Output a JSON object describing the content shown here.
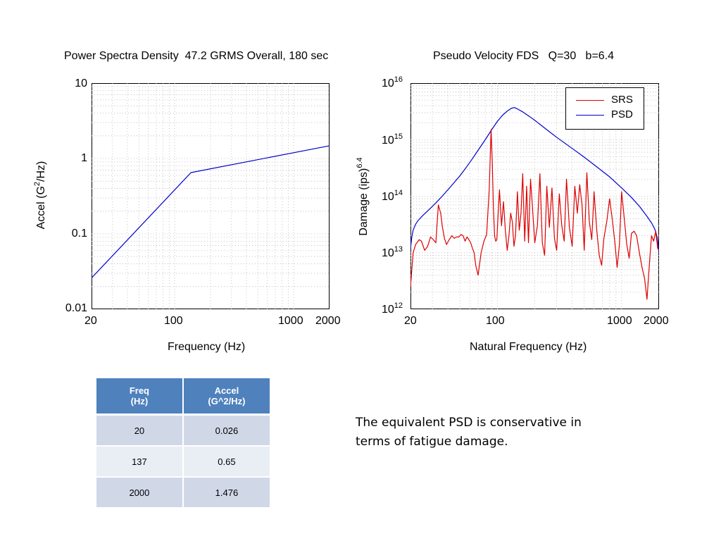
{
  "chart_data": [
    {
      "type": "line",
      "title": "Power Spectra Density  47.2 GRMS Overall, 180 sec",
      "xlabel": "Frequency (Hz)",
      "ylabel": "Accel (G2/Hz)",
      "x_scale": "log",
      "y_scale": "log",
      "xlim": [
        20,
        2000
      ],
      "ylim": [
        0.01,
        10
      ],
      "x_ticks": [
        "20",
        "100",
        "1000",
        "2000"
      ],
      "y_ticks": [
        "10",
        "1",
        "0.1",
        "0.01"
      ],
      "grid": true,
      "series": [
        {
          "color": "#0000cc",
          "x": [
            20,
            137,
            2000
          ],
          "y": [
            0.026,
            0.65,
            1.476
          ]
        }
      ]
    },
    {
      "type": "line",
      "title": "Pseudo Velocity FDS   Q=30   b=6.4",
      "xlabel": "Natural Frequency (Hz)",
      "ylabel": "Damage (ips)6.4",
      "x_scale": "log",
      "y_scale": "log",
      "xlim": [
        20,
        2000
      ],
      "ylim": [
        1000000000000.0,
        1e+16
      ],
      "x_ticks": [
        "20",
        "100",
        "1000",
        "2000"
      ],
      "y_ticks": [
        "16",
        "15",
        "14",
        "13",
        "12"
      ],
      "grid": true,
      "legend": "top-right",
      "series": [
        {
          "name": "SRS",
          "color": "#dd0000",
          "x": [
            20,
            21,
            22,
            23.5,
            24.5,
            26,
            27.5,
            29,
            30.5,
            32,
            33.5,
            35,
            36,
            37.5,
            39,
            41,
            43,
            45,
            47,
            49,
            51,
            53,
            55,
            57,
            59,
            61,
            63,
            65,
            67,
            70,
            74,
            78,
            82,
            86,
            89,
            91,
            93,
            95,
            97,
            99,
            101,
            104,
            108,
            112,
            116,
            120,
            124,
            128,
            132,
            136,
            140,
            145,
            150,
            155,
            160,
            166,
            172,
            178,
            185,
            192,
            200,
            210,
            220,
            230,
            240,
            250,
            262,
            275,
            288,
            300,
            315,
            330,
            345,
            360,
            380,
            400,
            420,
            440,
            460,
            480,
            500,
            525,
            550,
            575,
            600,
            630,
            660,
            690,
            720,
            760,
            800,
            840,
            880,
            920,
            960,
            1000,
            1050,
            1100,
            1150,
            1200,
            1260,
            1320,
            1390,
            1460,
            1530,
            1600,
            1670,
            1740,
            1810,
            1880,
            1950,
            2000
          ],
          "y": [
            2500000000000.0,
            10000000000000.0,
            14000000000000.0,
            17000000000000.0,
            16000000000000.0,
            11000000000000.0,
            13000000000000.0,
            19000000000000.0,
            17000000000000.0,
            15000000000000.0,
            70000000000000.0,
            50000000000000.0,
            30000000000000.0,
            18000000000000.0,
            14000000000000.0,
            17000000000000.0,
            20000000000000.0,
            18000000000000.0,
            19000000000000.0,
            19000000000000.0,
            21000000000000.0,
            20000000000000.0,
            16000000000000.0,
            19000000000000.0,
            17000000000000.0,
            15000000000000.0,
            12000000000000.0,
            10000000000000.0,
            6000000000000.0,
            4000000000000.0,
            10000000000000.0,
            16000000000000.0,
            21000000000000.0,
            130000000000000.0,
            1500000000000000.0,
            400000000000000.0,
            60000000000000.0,
            20000000000000.0,
            16000000000000.0,
            17000000000000.0,
            40000000000000.0,
            130000000000000.0,
            30000000000000.0,
            80000000000000.0,
            25000000000000.0,
            11000000000000.0,
            20000000000000.0,
            50000000000000.0,
            35000000000000.0,
            13000000000000.0,
            20000000000000.0,
            120000000000000.0,
            25000000000000.0,
            50000000000000.0,
            250000000000000.0,
            16000000000000.0,
            150000000000000.0,
            15000000000000.0,
            200000000000000.0,
            60000000000000.0,
            15000000000000.0,
            30000000000000.0,
            250000000000000.0,
            15000000000000.0,
            9000000000000.0,
            150000000000000.0,
            28000000000000.0,
            140000000000000.0,
            18000000000000.0,
            11000000000000.0,
            110000000000000.0,
            30000000000000.0,
            16000000000000.0,
            200000000000000.0,
            28000000000000.0,
            13000000000000.0,
            150000000000000.0,
            50000000000000.0,
            160000000000000.0,
            70000000000000.0,
            11000000000000.0,
            260000000000000.0,
            35000000000000.0,
            17000000000000.0,
            120000000000000.0,
            26000000000000.0,
            9000000000000.0,
            6000000000000.0,
            18000000000000.0,
            36000000000000.0,
            90000000000000.0,
            40000000000000.0,
            16000000000000.0,
            5500000000000.0,
            14000000000000.0,
            120000000000000.0,
            40000000000000.0,
            14000000000000.0,
            8000000000000.0,
            22000000000000.0,
            24000000000000.0,
            20000000000000.0,
            10000000000000.0,
            5500000000000.0,
            3500000000000.0,
            1500000000000.0,
            6000000000000.0,
            20000000000000.0,
            16000000000000.0,
            24000000000000.0,
            12000000000000.0,
            11000000000000.0
          ]
        },
        {
          "name": "PSD",
          "color": "#0000cc",
          "x": [
            20,
            20.5,
            21,
            22,
            23,
            25,
            28,
            32,
            36,
            40,
            45,
            50,
            56,
            63,
            70,
            80,
            90,
            100,
            110,
            120,
            130,
            137,
            145,
            160,
            180,
            200,
            250,
            300,
            400,
            500,
            600,
            800,
            1000,
            1200,
            1400,
            1600,
            1750,
            1850,
            1920,
            1960,
            1985,
            2000
          ],
          "y": [
            12000000000000.0,
            19000000000000.0,
            25000000000000.0,
            32000000000000.0,
            37000000000000.0,
            45000000000000.0,
            57000000000000.0,
            76000000000000.0,
            100000000000000.0,
            130000000000000.0,
            175000000000000.0,
            230000000000000.0,
            320000000000000.0,
            460000000000000.0,
            650000000000000.0,
            1000000000000000.0,
            1500000000000000.0,
            2100000000000000.0,
            2700000000000000.0,
            3200000000000000.0,
            3600000000000000.0,
            3700000000000000.0,
            3500000000000000.0,
            3100000000000000.0,
            2600000000000000.0,
            2200000000000000.0,
            1500000000000000.0,
            1100000000000000.0,
            700000000000000.0,
            490000000000000.0,
            360000000000000.0,
            220000000000000.0,
            140000000000000.0,
            95000000000000.0,
            65000000000000.0,
            44000000000000.0,
            33000000000000.0,
            26000000000000.0,
            20000000000000.0,
            15000000000000.0,
            11000000000000.0,
            10000000000000.0
          ]
        }
      ]
    }
  ],
  "table": {
    "headers": [
      [
        "Freq",
        "(Hz)"
      ],
      [
        "Accel",
        "(G^2/Hz)"
      ]
    ],
    "rows": [
      [
        "20",
        "0.026"
      ],
      [
        "137",
        "0.65"
      ],
      [
        "2000",
        "1.476"
      ]
    ]
  },
  "note": "The equivalent PSD is conservative in terms of fatigue damage."
}
